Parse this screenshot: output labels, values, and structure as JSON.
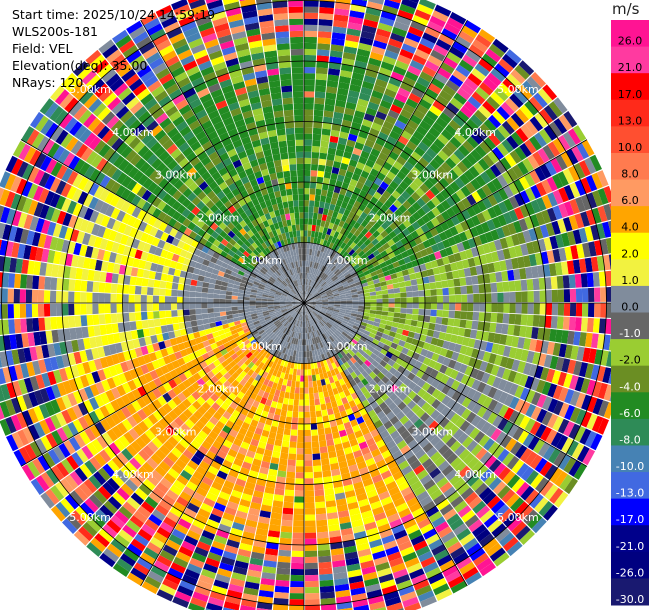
{
  "header": {
    "start_time": "Start time: 2025/10/24 14:59:19",
    "instrument": "WLS200s-181",
    "field": "Field: VEL",
    "elevation": "Elevation(deg): 35.00",
    "nrays": "NRays: 120"
  },
  "chart_data": {
    "type": "heatmap",
    "projection": "polar PPI",
    "field": "VEL",
    "units": "m/s",
    "n_rays": 120,
    "elevation_deg": 35.0,
    "range_rings_km": [
      1.0,
      2.0,
      3.0,
      4.0,
      5.0
    ],
    "ring_labels": [
      "1.00km",
      "2.00km",
      "3.00km",
      "4.00km",
      "5.00km"
    ],
    "max_range_km": 5.4,
    "colorbar": {
      "label": "m/s",
      "ticks": [
        "26.0",
        "21.0",
        "17.0",
        "13.0",
        "10.0",
        "8.0",
        "6.0",
        "4.0",
        "2.0",
        "1.0",
        "0.0",
        "-1.0",
        "-2.0",
        "-4.0",
        "-6.0",
        "-8.0",
        "-10.0",
        "-13.0",
        "-17.0",
        "-21.0",
        "-26.0",
        "-30.0"
      ],
      "colors": [
        "#ff1493",
        "#ff3aa0",
        "#ff0000",
        "#ff2a1a",
        "#ff4f30",
        "#ff7b4f",
        "#ff9a62",
        "#ffa500",
        "#ffff00",
        "#f2f240",
        "#808c9c",
        "#666666",
        "#9acd32",
        "#6b8e23",
        "#228b22",
        "#2e8b57",
        "#4682b4",
        "#4169e1",
        "#0000ff",
        "#00008b",
        "#000080",
        "#191970"
      ]
    },
    "velocity_pattern": {
      "near_range_0_1km": "gray (about 0 m/s)",
      "north_sector_1_4km": "green, -4 to -8 m/s",
      "west_ring_1_2km": "gray",
      "south_southwest_1_4km": "orange/yellow, 2 to 6 m/s",
      "outer_ring_4_5km": "noisy, all colors"
    }
  }
}
